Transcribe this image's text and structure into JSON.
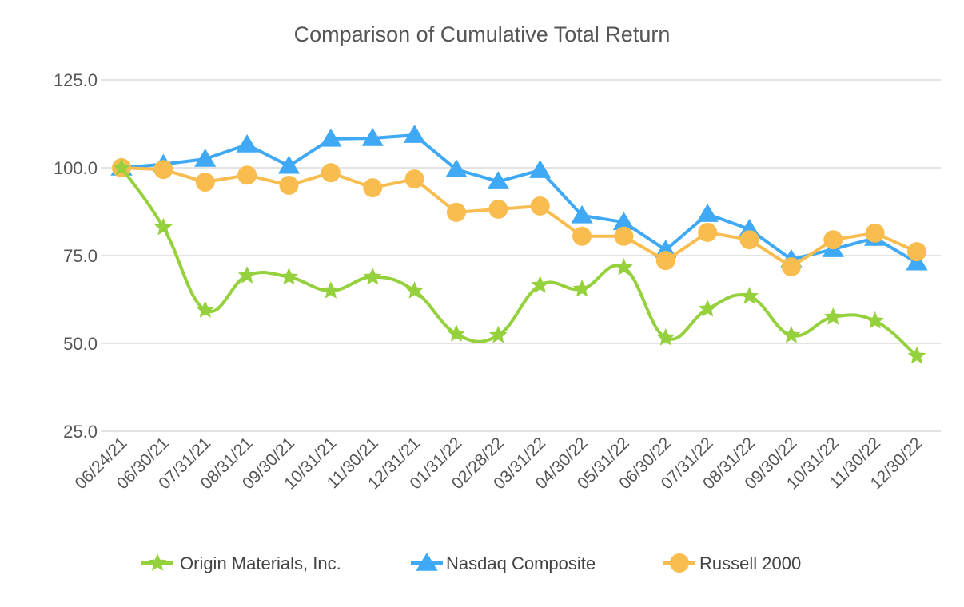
{
  "chart_data": {
    "type": "line",
    "title": "Comparison of Cumulative Total Return",
    "xlabel": "",
    "ylabel": "",
    "ylim": [
      25,
      125
    ],
    "yticks": [
      "25.0",
      "50.0",
      "75.0",
      "100.0",
      "125.0"
    ],
    "grid": true,
    "legend_position": "bottom",
    "categories": [
      "06/24/21",
      "06/30/21",
      "07/31/21",
      "08/31/21",
      "09/30/21",
      "10/31/21",
      "11/30/21",
      "12/31/21",
      "01/31/22",
      "02/28/22",
      "03/31/22",
      "04/30/22",
      "05/31/22",
      "06/30/22",
      "07/31/22",
      "08/31/22",
      "09/30/22",
      "10/31/22",
      "11/30/22",
      "12/30/22"
    ],
    "series": [
      {
        "name": "Origin Materials, Inc.",
        "color": "#95d13c",
        "marker": "star",
        "smooth": true,
        "values": [
          100,
          83.0,
          59.5,
          69.3,
          68.9,
          65.0,
          68.9,
          65.0,
          52.7,
          52.3,
          66.6,
          65.5,
          71.6,
          51.6,
          59.8,
          63.4,
          52.3,
          57.5,
          56.4,
          46.4
        ]
      },
      {
        "name": "Nasdaq Composite",
        "color": "#3fa9f5",
        "marker": "triangle",
        "smooth": false,
        "values": [
          100,
          101.0,
          102.5,
          106.6,
          100.5,
          108.2,
          108.4,
          109.3,
          99.5,
          96.1,
          99.3,
          86.4,
          84.5,
          76.6,
          86.8,
          82.5,
          73.9,
          76.8,
          80.0,
          73.0
        ]
      },
      {
        "name": "Russell 2000",
        "color": "#f9bd4f",
        "marker": "circle",
        "smooth": false,
        "values": [
          100,
          99.5,
          95.9,
          97.9,
          95.0,
          98.6,
          94.3,
          96.8,
          87.3,
          88.2,
          89.1,
          80.5,
          80.5,
          73.6,
          81.6,
          79.5,
          71.8,
          79.5,
          81.4,
          76.1
        ]
      }
    ]
  }
}
